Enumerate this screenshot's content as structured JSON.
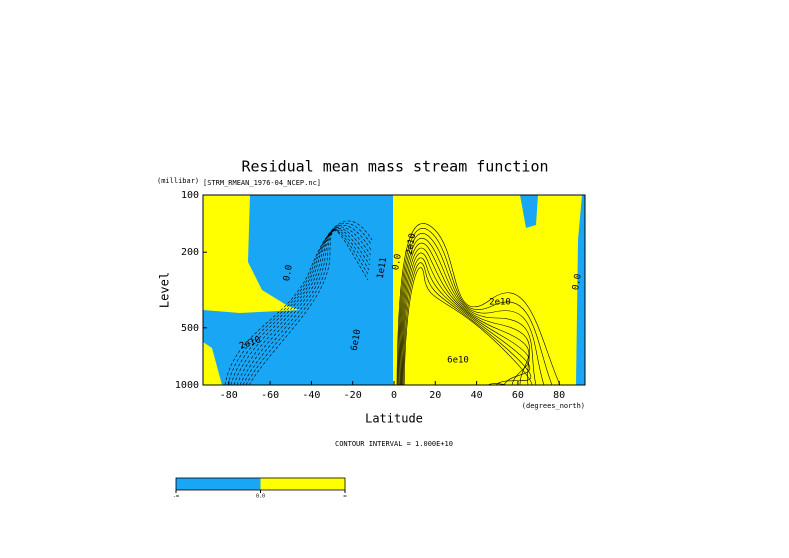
{
  "chart_data": {
    "type": "contour",
    "title": "Residual mean mass stream function",
    "subtitle": "[STRM_RMEAN_1976-04_NCEP.nc]",
    "x_label": "Latitude",
    "x_units": "(degrees_north)",
    "y_label": "Level",
    "y_units": "(millibar)",
    "xlim": [
      -92.5,
      92.5
    ],
    "xticks": [
      -80,
      -60,
      -40,
      -20,
      0,
      20,
      40,
      60,
      80
    ],
    "ylim": [
      100,
      1000
    ],
    "y_log": true,
    "y_inverted": true,
    "yticks": [
      100,
      200,
      500,
      1000
    ],
    "footnote": "CONTOUR INTERVAL = 1.000E+10",
    "fill_colors": [
      "#19a6f5",
      "#ffff00"
    ],
    "contour_labels": [
      "0.0",
      "2e10",
      "6e10",
      "1e11",
      "0.0",
      "2e10",
      "2e10",
      "6e10",
      "0.0"
    ],
    "colorbar_labels": [
      "-∞",
      "0.0",
      "∞"
    ]
  }
}
